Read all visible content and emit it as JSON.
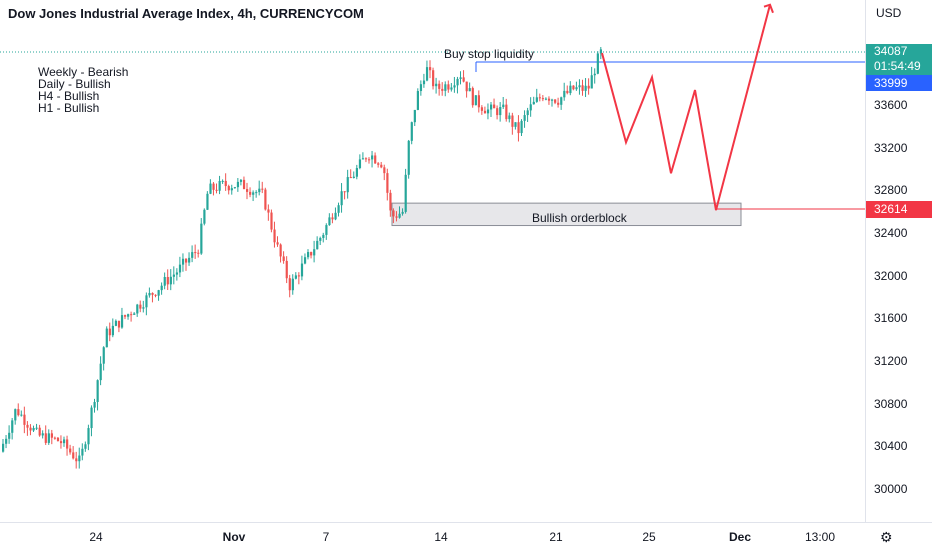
{
  "header": {
    "title": "Dow Jones Industrial Average Index, 4h, CURRENCYCOM",
    "currency": "USD"
  },
  "bias_notes": [
    "Weekly - Bearish",
    "Daily - Bullish",
    "H4 - Bullish",
    "H1 - Bullish"
  ],
  "annotations": {
    "buy_stop_label": "Buy stop liquidity",
    "orderblock_label": "Bullish orderblock"
  },
  "price_badges": {
    "last_price": "34087",
    "countdown": "01:54:49",
    "level_blue": "33999",
    "level_red": "32614"
  },
  "colors": {
    "up": "#26a69a",
    "down": "#ef5350",
    "projection": "#f23645",
    "blue_line": "#2962ff",
    "last_price_badge": "#26a69a",
    "blue_badge": "#2962ff",
    "red_badge": "#f23645"
  },
  "chart_data": {
    "type": "candlestick",
    "title": "Dow Jones Industrial Average Index, 4h, CURRENCYCOM",
    "y_ticks": [
      30000,
      30400,
      30800,
      31200,
      31600,
      32000,
      32400,
      32800,
      33200,
      33600
    ],
    "x_ticks": [
      "24",
      "Nov",
      "7",
      "14",
      "21",
      "25",
      "Dec",
      "13:00"
    ],
    "ylim": [
      29750,
      34480
    ],
    "last_price": 34087,
    "levels": {
      "buy_stop_liquidity": 33999,
      "orderblock_top": 32680,
      "orderblock_bottom": 32470,
      "target": 32614
    },
    "projection_path": [
      34087,
      33250,
      33860,
      32960,
      33740,
      32614,
      34540
    ]
  }
}
